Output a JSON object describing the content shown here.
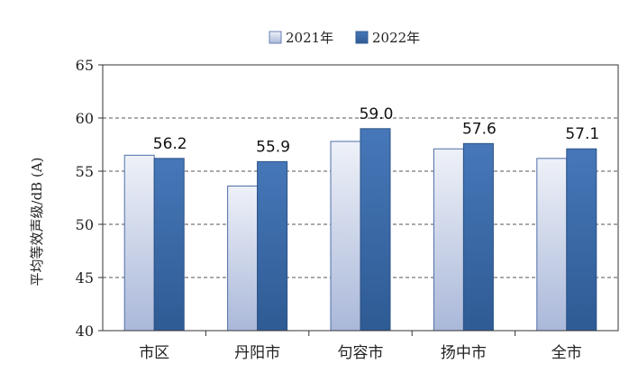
{
  "chart_data": {
    "type": "bar",
    "title": "",
    "xlabel": "",
    "ylabel": "平均等效声级/dB (A)",
    "categories": [
      "市区",
      "丹阳市",
      "句容市",
      "扬中市",
      "全市"
    ],
    "series": [
      {
        "name": "2021年",
        "values": [
          56.5,
          53.6,
          57.8,
          57.1,
          56.2
        ],
        "color": "#dde4f2"
      },
      {
        "name": "2022年",
        "values": [
          56.2,
          55.9,
          59.0,
          57.6,
          57.1
        ],
        "color": "#3e6fb0"
      }
    ],
    "data_labels": [
      "56.2",
      "55.9",
      "59.0",
      "57.6",
      "57.1"
    ],
    "ylim": [
      40,
      65
    ],
    "yticks": [
      "40",
      "45",
      "50",
      "55",
      "60",
      "65"
    ],
    "grid": "dashed horizontal",
    "legend_position": "top-center"
  }
}
